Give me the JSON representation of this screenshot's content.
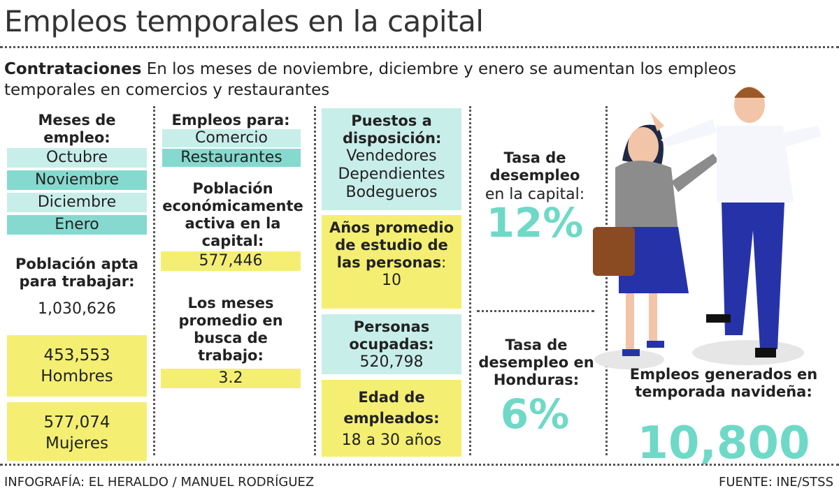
{
  "header": {
    "title": "Empleos temporales en la capital",
    "lead_bold": "Contrataciones",
    "lead": "En los meses de noviembre, diciembre y enero se aumentan los empleos temporales en comercios y restaurantes"
  },
  "months": {
    "label": "Meses de empleo:",
    "items": [
      "Octubre",
      "Noviembre",
      "Diciembre",
      "Enero"
    ]
  },
  "working_age": {
    "label": "Población apta para trabajar:",
    "value": "1,030,626"
  },
  "men": {
    "value": "453,553",
    "label": "Hombres"
  },
  "women": {
    "value": "577,074",
    "label": "Mujeres"
  },
  "jobs_for": {
    "label": "Empleos para:",
    "items": [
      "Comercio",
      "Restaurantes"
    ]
  },
  "active": {
    "label": "Población económicamente activa en la capital:",
    "value": "577,446"
  },
  "search_months": {
    "label": "Los meses promedio en busca de trabajo:",
    "value": "3.2"
  },
  "positions": {
    "label": "Puestos a disposición:",
    "items": [
      "Vendedores",
      "Dependientes",
      "Bodegueros"
    ]
  },
  "study": {
    "label": "Años promedio de estudio de las personas",
    "suffix": ":",
    "value": "10"
  },
  "employed": {
    "label": "Personas ocupadas:",
    "value": "520,798"
  },
  "age": {
    "label": "Edad de empleados:",
    "value": "18 a 30 años"
  },
  "capital_rate": {
    "label": "Tasa de desempleo",
    "sublabel": "en la capital:",
    "value": "12%"
  },
  "honduras_rate": {
    "label": "Tasa de desempleo en Honduras:",
    "value": "6%"
  },
  "season_jobs": {
    "label": "Empleos generados en temporada navideña:",
    "value": "10,800"
  },
  "footer": {
    "credit": "INFOGRAFÍA: EL HERALDO / MANUEL RODRÍGUEZ",
    "source": "FUENTE: INE/STSS"
  }
}
